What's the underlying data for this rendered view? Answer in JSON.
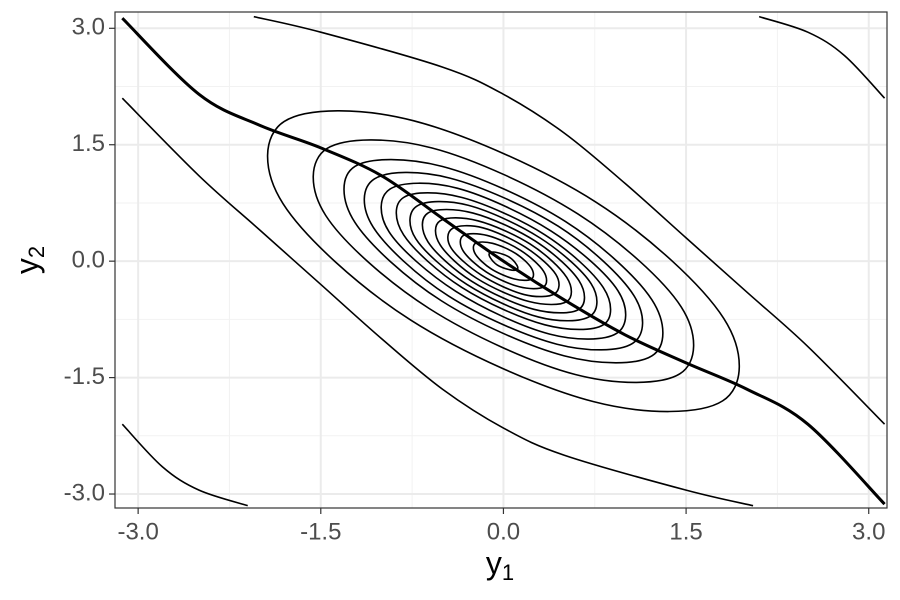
{
  "chart_data": {
    "type": "contour",
    "xlabel": {
      "text": "y",
      "subscript": "1"
    },
    "ylabel": {
      "text": "y",
      "subscript": "2"
    },
    "xlim": [
      -3.19,
      3.15
    ],
    "ylim": [
      -3.18,
      3.21
    ],
    "xticks": [
      {
        "value": -3,
        "label": "-3.0"
      },
      {
        "value": -1.5,
        "label": "-1.5"
      },
      {
        "value": 0,
        "label": "0.0"
      },
      {
        "value": 1.5,
        "label": "1.5"
      },
      {
        "value": 3,
        "label": "3.0"
      }
    ],
    "yticks": [
      {
        "value": -3,
        "label": "-3.0"
      },
      {
        "value": -1.5,
        "label": "-1.5"
      },
      {
        "value": 0,
        "label": "0.0"
      },
      {
        "value": 1.5,
        "label": "1.5"
      },
      {
        "value": 3,
        "label": "3.0"
      }
    ],
    "minor_xticks": [
      -2.25,
      -0.75,
      0.75,
      2.25
    ],
    "minor_yticks": [
      -2.25,
      -0.75,
      0.75,
      2.25
    ],
    "grid": true,
    "color": "#000000",
    "series": [
      {
        "closed": true,
        "x": [
          1.8,
          1.81,
          0.76,
          -0.74,
          -1.8,
          -1.81,
          -0.76,
          0.74
        ],
        "y": [
          -1.8,
          -0.74,
          0.76,
          1.81,
          1.8,
          0.74,
          -0.76,
          -1.81
        ]
      },
      {
        "closed": true,
        "x": [
          1.45,
          1.46,
          0.61,
          -0.59,
          -1.45,
          -1.46,
          -0.61,
          0.59
        ],
        "y": [
          -1.45,
          -0.59,
          0.61,
          1.46,
          1.45,
          0.59,
          -0.61,
          -1.46
        ]
      },
      {
        "closed": true,
        "x": [
          1.22,
          1.22,
          0.51,
          -0.5,
          -1.22,
          -1.22,
          -0.51,
          0.5
        ],
        "y": [
          -1.22,
          -0.5,
          0.51,
          1.22,
          1.22,
          0.5,
          -0.51,
          -1.22
        ]
      },
      {
        "closed": true,
        "x": [
          1.06,
          1.07,
          0.45,
          -0.44,
          -1.06,
          -1.07,
          -0.45,
          0.44
        ],
        "y": [
          -1.06,
          -0.44,
          0.45,
          1.07,
          1.06,
          0.44,
          -0.45,
          -1.07
        ]
      },
      {
        "closed": true,
        "x": [
          0.93,
          0.94,
          0.39,
          -0.38,
          -0.93,
          -0.94,
          -0.39,
          0.38
        ],
        "y": [
          -0.93,
          -0.38,
          0.39,
          0.94,
          0.93,
          0.38,
          -0.39,
          -0.94
        ]
      },
      {
        "closed": true,
        "x": [
          0.82,
          0.82,
          0.34,
          -0.34,
          -0.82,
          -0.82,
          -0.34,
          0.34
        ],
        "y": [
          -0.82,
          -0.34,
          0.34,
          0.82,
          0.82,
          0.34,
          -0.34,
          -0.82
        ]
      },
      {
        "closed": true,
        "x": [
          0.71,
          0.72,
          0.3,
          -0.29,
          -0.71,
          -0.72,
          -0.3,
          0.29
        ],
        "y": [
          -0.71,
          -0.29,
          0.3,
          0.72,
          0.71,
          0.29,
          -0.3,
          -0.72
        ]
      },
      {
        "closed": true,
        "x": [
          0.62,
          0.62,
          0.26,
          -0.25,
          -0.62,
          -0.62,
          -0.26,
          0.25
        ],
        "y": [
          -0.62,
          -0.25,
          0.26,
          0.62,
          0.62,
          0.25,
          -0.26,
          -0.62
        ]
      },
      {
        "closed": true,
        "x": [
          0.52,
          0.52,
          0.22,
          -0.21,
          -0.52,
          -0.52,
          -0.22,
          0.21
        ],
        "y": [
          -0.52,
          -0.21,
          0.22,
          0.52,
          0.52,
          0.21,
          -0.22,
          -0.52
        ]
      },
      {
        "closed": true,
        "x": [
          0.42,
          0.43,
          0.18,
          -0.17,
          -0.42,
          -0.43,
          -0.18,
          0.17
        ],
        "y": [
          -0.42,
          -0.17,
          0.18,
          0.43,
          0.42,
          0.17,
          -0.18,
          -0.43
        ]
      },
      {
        "closed": true,
        "x": [
          0.33,
          0.33,
          0.14,
          -0.13,
          -0.33,
          -0.33,
          -0.14,
          0.13
        ],
        "y": [
          -0.33,
          -0.13,
          0.14,
          0.33,
          0.33,
          0.13,
          -0.14,
          -0.33
        ]
      },
      {
        "closed": true,
        "x": [
          0.23,
          0.23,
          0.1,
          -0.09,
          -0.23,
          -0.23,
          -0.1,
          0.09
        ],
        "y": [
          -0.23,
          -0.09,
          0.1,
          0.23,
          0.23,
          0.09,
          -0.1,
          -0.23
        ]
      },
      {
        "closed": true,
        "x": [
          0.11,
          0.11,
          0.05,
          -0.05,
          -0.11,
          -0.11,
          -0.05,
          0.05
        ],
        "y": [
          -0.11,
          -0.05,
          0.05,
          0.11,
          0.11,
          0.05,
          -0.05,
          -0.11
        ]
      },
      {
        "closed": false,
        "x": [
          -2.05,
          -1.5,
          -0.5,
          0,
          0.5,
          1,
          1.5,
          2,
          2.5,
          3.13
        ],
        "y": [
          3.15,
          2.95,
          2.5,
          2.15,
          1.65,
          1.0,
          0.3,
          -0.4,
          -1.1,
          -2.1
        ]
      },
      {
        "closed": false,
        "x": [
          2.05,
          1.5,
          0.5,
          0,
          -0.5,
          -1,
          -1.5,
          -2,
          -2.5,
          -3.13
        ],
        "y": [
          -3.15,
          -2.95,
          -2.5,
          -2.15,
          -1.65,
          -1.0,
          -0.3,
          0.4,
          1.1,
          2.1
        ]
      },
      {
        "closed": false,
        "x": [
          2.1,
          2.5,
          2.8,
          3.13
        ],
        "y": [
          3.15,
          2.95,
          2.65,
          2.1
        ]
      },
      {
        "closed": false,
        "x": [
          -2.1,
          -2.5,
          -2.8,
          -3.13
        ],
        "y": [
          -3.15,
          -2.95,
          -2.65,
          -2.1
        ]
      },
      {
        "closed": false,
        "width": 3,
        "x": [
          -3.13,
          -2.5,
          -2,
          -1.5,
          -1,
          -0.5,
          0,
          0.5,
          1,
          1.5,
          2,
          2.5,
          3.13
        ],
        "y": [
          3.13,
          2.15,
          1.75,
          1.46,
          1.1,
          0.55,
          0,
          -0.5,
          -0.95,
          -1.31,
          -1.65,
          -2.1,
          -3.13
        ]
      }
    ]
  }
}
